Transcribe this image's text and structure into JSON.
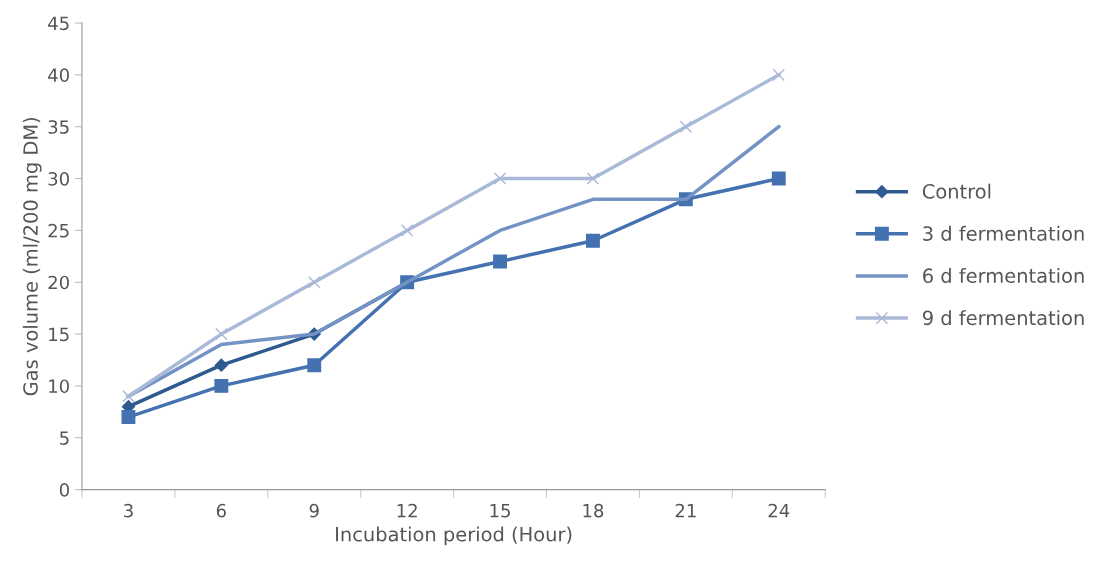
{
  "chart_data": {
    "type": "line",
    "xlabel": "Incubation period (Hour)",
    "ylabel": "Gas volume (ml/200 mg DM)",
    "categories": [
      "3",
      "6",
      "9",
      "12",
      "15",
      "18",
      "21",
      "24"
    ],
    "series": [
      {
        "name": "Control",
        "color": "#2e5a8f",
        "marker": "diamond",
        "values": [
          8,
          12,
          15,
          20,
          null,
          null,
          null,
          null
        ]
      },
      {
        "name": "3 d fermentation",
        "color": "#4472b0",
        "marker": "square",
        "values": [
          7,
          10,
          12,
          20,
          22,
          24,
          28,
          30
        ]
      },
      {
        "name": "6 d fermentation",
        "color": "#7393c4",
        "marker": "none",
        "values": [
          9,
          14,
          15,
          20,
          25,
          28,
          28,
          35
        ]
      },
      {
        "name": "9 d fermentation",
        "color": "#aab9d8",
        "marker": "cross",
        "values": [
          9,
          15,
          20,
          25,
          30,
          30,
          35,
          40
        ]
      }
    ],
    "ylim": [
      0,
      45
    ],
    "yticks": [
      0,
      5,
      10,
      15,
      20,
      25,
      30,
      35,
      40,
      45
    ],
    "grid": false,
    "legend": "right"
  }
}
